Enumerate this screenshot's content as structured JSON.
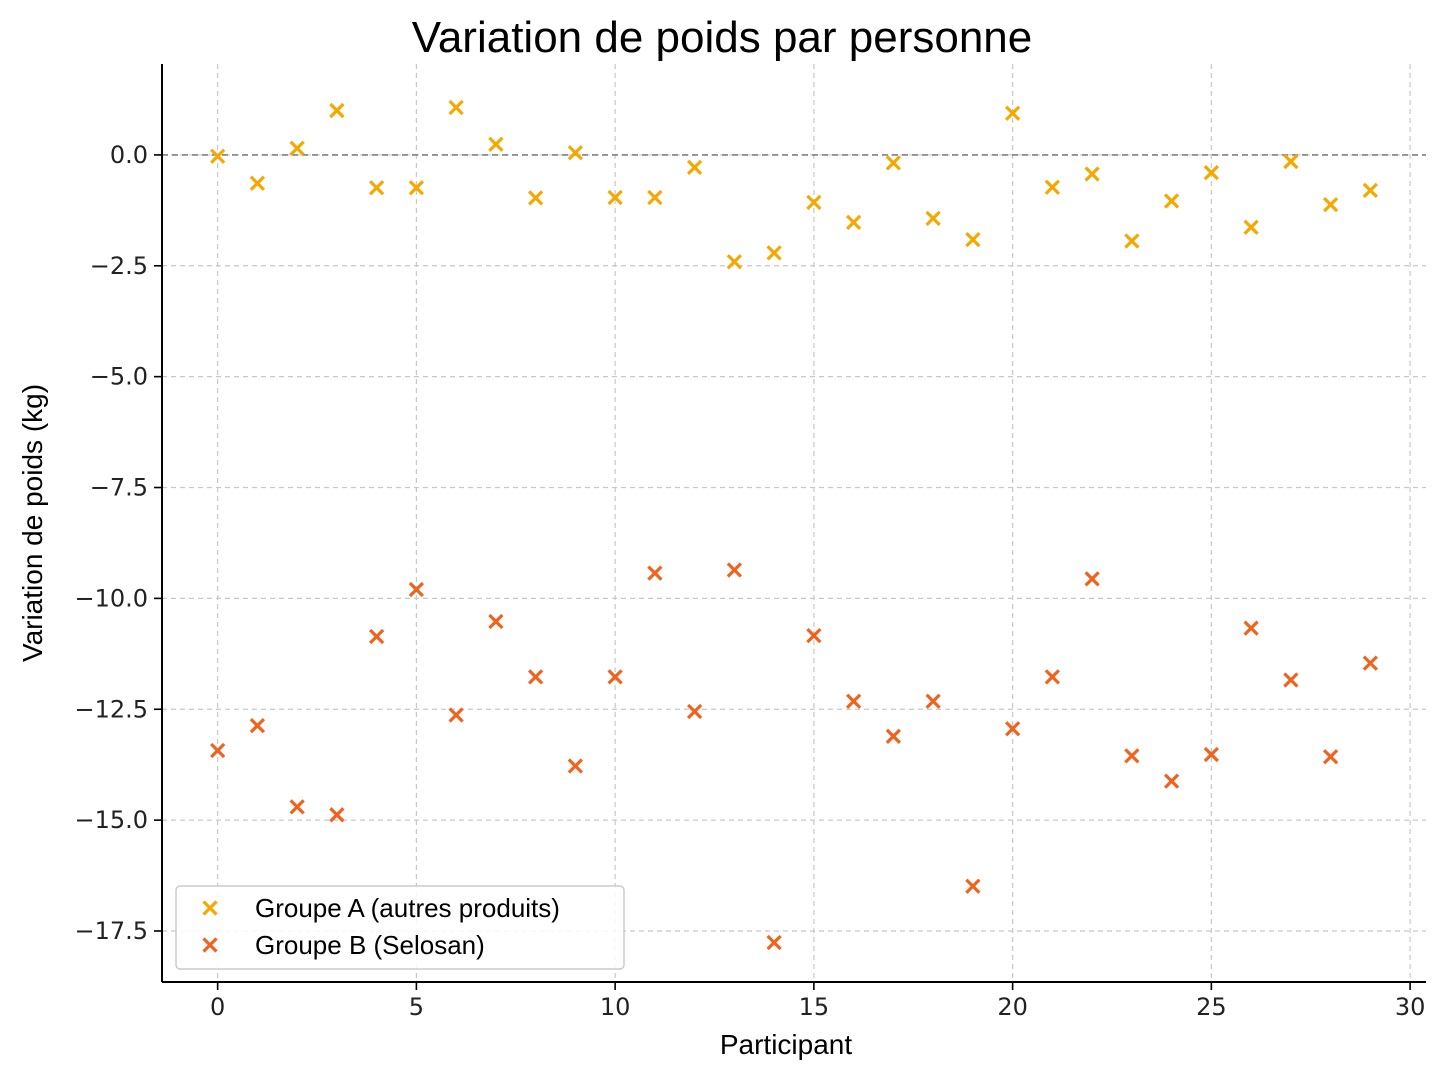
{
  "chart_data": {
    "type": "scatter",
    "title": "Variation de poids par personne",
    "xlabel": "Participant",
    "ylabel": "Variation de poids (kg)",
    "xlim": [
      -1.4,
      30.4
    ],
    "ylim": [
      -18.65,
      2.05
    ],
    "xticks": [
      0,
      5,
      10,
      15,
      20,
      25,
      30
    ],
    "xtick_labels": [
      "0",
      "5",
      "10",
      "15",
      "20",
      "25",
      "30"
    ],
    "yticks": [
      0.0,
      -2.5,
      -5.0,
      -7.5,
      -10.0,
      -12.5,
      -15.0,
      -17.5
    ],
    "ytick_labels": [
      "0.0",
      "−2.5",
      "−5.0",
      "−7.5",
      "−10.0",
      "−12.5",
      "−15.0",
      "−17.5"
    ],
    "grid": true,
    "reference_line": 0.0,
    "legend_position": "bottom-left",
    "marker": "x",
    "series": [
      {
        "name": "Groupe A (autres produits)",
        "color": "#F5A800",
        "x": [
          0,
          1,
          2,
          3,
          4,
          5,
          6,
          7,
          8,
          9,
          10,
          11,
          12,
          13,
          14,
          15,
          16,
          17,
          18,
          19,
          20,
          21,
          22,
          23,
          24,
          25,
          26,
          27,
          28,
          29
        ],
        "y": [
          -0.03,
          -0.64,
          0.15,
          1.0,
          -0.74,
          -0.74,
          1.07,
          0.24,
          -0.97,
          0.05,
          -0.96,
          -0.96,
          -0.28,
          -2.41,
          -2.21,
          -1.07,
          -1.52,
          -0.18,
          -1.43,
          -1.91,
          0.94,
          -0.73,
          -0.43,
          -1.94,
          -1.04,
          -0.4,
          -1.63,
          -0.15,
          -1.12,
          -0.8
        ]
      },
      {
        "name": "Groupe B (Selosan)",
        "color": "#F0631E",
        "x": [
          0,
          1,
          2,
          3,
          4,
          5,
          6,
          7,
          8,
          9,
          10,
          11,
          12,
          13,
          14,
          15,
          16,
          17,
          18,
          19,
          20,
          21,
          22,
          23,
          24,
          25,
          26,
          27,
          28,
          29
        ],
        "y": [
          -13.43,
          -12.87,
          -14.7,
          -14.88,
          -10.86,
          -9.8,
          -12.63,
          -10.52,
          -11.77,
          -13.78,
          -11.77,
          -9.43,
          -12.55,
          -9.36,
          -17.76,
          -10.84,
          -12.32,
          -13.11,
          -12.32,
          -16.49,
          -12.94,
          -11.77,
          -9.56,
          -13.55,
          -14.12,
          -13.52,
          -10.67,
          -11.84,
          -13.57,
          -11.46
        ]
      }
    ]
  }
}
